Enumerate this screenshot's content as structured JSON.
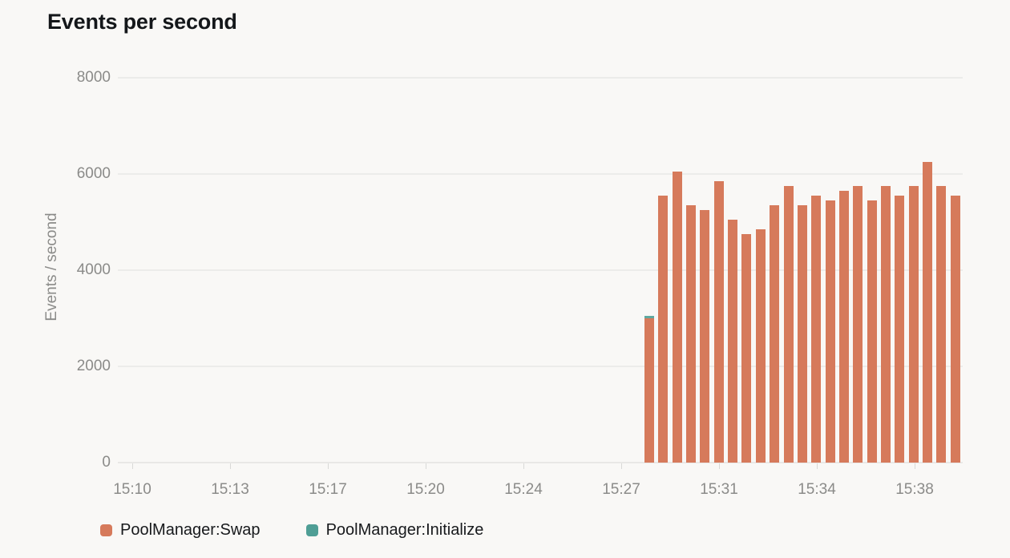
{
  "chart_data": {
    "type": "bar",
    "stacked": true,
    "title": "Events per second",
    "ylabel": "Events / second",
    "xlabel": "",
    "ylim": [
      0,
      8000
    ],
    "y_ticks": [
      0,
      2000,
      4000,
      6000,
      8000
    ],
    "x_tick_labels": [
      "15:10",
      "15:13",
      "15:17",
      "15:20",
      "15:24",
      "15:27",
      "15:31",
      "15:34",
      "15:38"
    ],
    "grid": "horizontal",
    "legend_position": "bottom-left",
    "bar_count": 23,
    "series": [
      {
        "name": "PoolManager:Swap",
        "color": "#d67a5b",
        "values": [
          3000,
          5550,
          6050,
          5350,
          5250,
          5850,
          5050,
          4750,
          4850,
          5350,
          5750,
          5350,
          5550,
          5450,
          5650,
          5750,
          5450,
          5750,
          5550,
          5750,
          6250,
          5750,
          5550
        ]
      },
      {
        "name": "PoolManager:Initialize",
        "color": "#4f9e95",
        "values": [
          50,
          0,
          0,
          0,
          0,
          0,
          0,
          0,
          0,
          0,
          0,
          0,
          0,
          0,
          0,
          0,
          0,
          0,
          0,
          0,
          0,
          0,
          0
        ]
      }
    ],
    "initialize_cap_color": "#5fa8a0"
  },
  "colors": {
    "background": "#f9f8f6",
    "gridline": "#ececea",
    "axis_text": "#8b8b89",
    "title_text": "#14171a",
    "legend_text": "#17191c"
  }
}
